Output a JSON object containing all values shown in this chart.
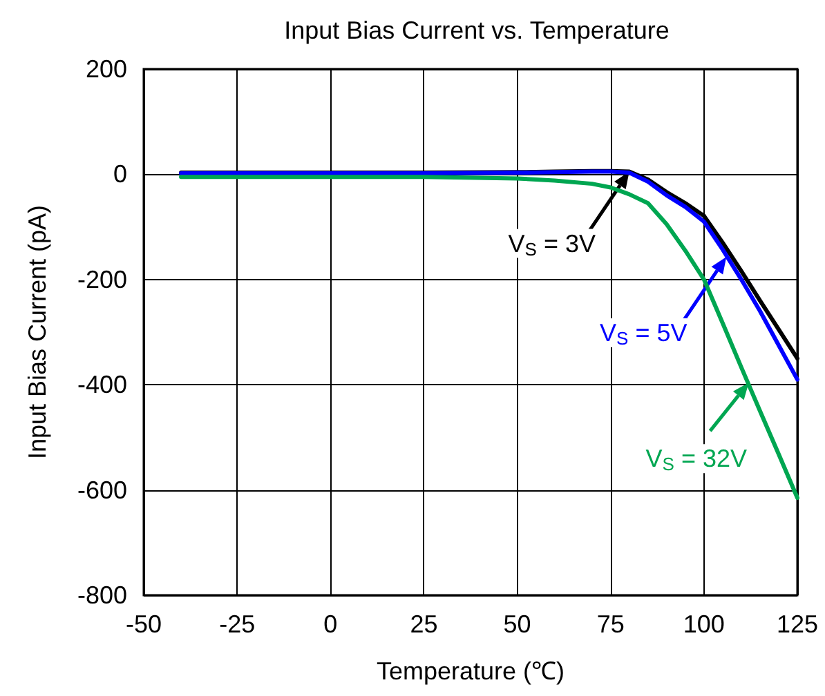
{
  "chart_data": {
    "type": "line",
    "title": "Input Bias Current vs. Temperature",
    "xlabel": "Temperature (℃)",
    "ylabel": "Input Bias Current (pA)",
    "x": [
      -40,
      -25,
      0,
      25,
      50,
      60,
      70,
      75,
      80,
      85,
      90,
      95,
      100,
      105,
      110,
      115,
      120,
      125
    ],
    "series": [
      {
        "color": "#000000",
        "values": [
          3,
          3,
          3,
          3,
          4,
          5,
          6,
          6,
          5,
          -10,
          -34,
          -55,
          -79,
          -130,
          -184,
          -240,
          -295,
          -350
        ]
      },
      {
        "color": "#0000ff",
        "values": [
          2,
          2,
          2,
          2,
          3,
          4,
          5,
          5,
          3,
          -14,
          -40,
          -62,
          -90,
          -143,
          -200,
          -260,
          -325,
          -390
        ]
      },
      {
        "color": "#00a651",
        "values": [
          -5,
          -5,
          -5,
          -5,
          -8,
          -12,
          -18,
          -25,
          -38,
          -55,
          -95,
          -145,
          -200,
          -283,
          -367,
          -450,
          -532,
          -615
        ]
      }
    ],
    "annotations": [
      {
        "text": "V$_{S}$ = 3V",
        "x": 80,
        "y": 5
      },
      {
        "text": "V$_{S}$ = 5V",
        "x": 106,
        "y": -157
      },
      {
        "text": "V$_{S}$ = 32V",
        "x": 112,
        "y": -396
      }
    ],
    "xlim": [
      -50,
      125
    ],
    "xticks": [
      -50,
      -25,
      0,
      25,
      50,
      75,
      100,
      125
    ],
    "ylim": [
      -800,
      200
    ],
    "yticks": [
      -800,
      -600,
      -400,
      -200,
      0,
      200
    ],
    "grid": true,
    "marker": "none",
    "line_style": "solid"
  }
}
